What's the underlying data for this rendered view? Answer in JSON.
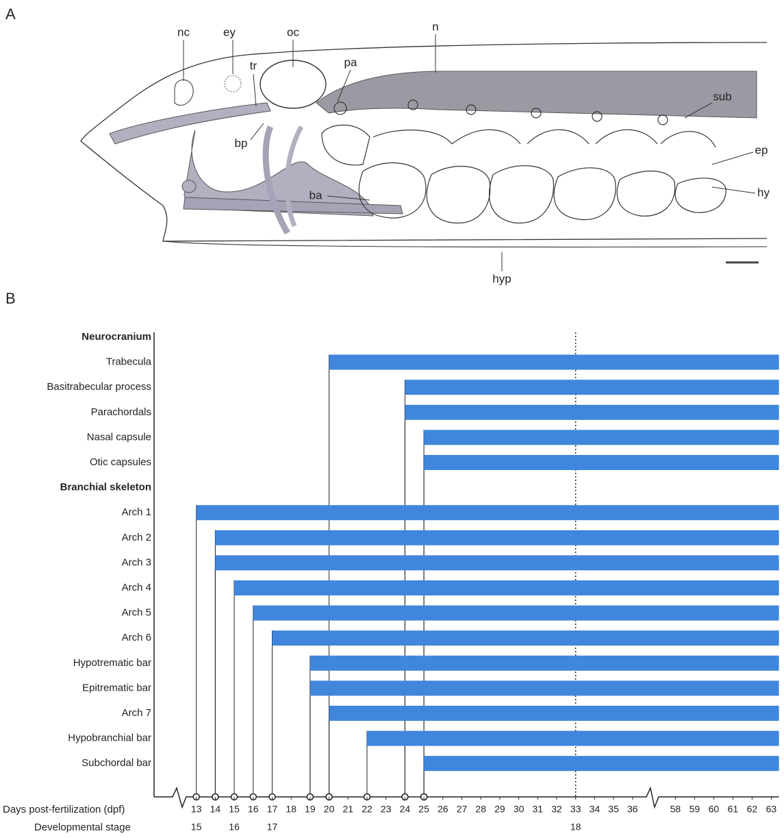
{
  "panel_a": {
    "label": "A",
    "labels": [
      "nc",
      "ey",
      "oc",
      "n",
      "tr",
      "pa",
      "sub",
      "bp",
      "ep",
      "hy",
      "ba",
      "hyp"
    ]
  },
  "chart_data": {
    "type": "timeline",
    "panel_label": "B",
    "categories": [
      "Neurocranium",
      "Trabecula",
      "Basitrabecular process",
      "Parachordals",
      "Nasal capsule",
      "Otic capsules",
      "Branchial skeleton",
      "Arch 1",
      "Arch 2",
      "Arch 3",
      "Arch 4",
      "Arch 5",
      "Arch 6",
      "Hypotrematic bar",
      "Epitrematic bar",
      "Arch 7",
      "Hypobranchial bar",
      "Subchordal bar"
    ],
    "values": [
      null,
      20,
      24,
      24,
      25,
      25,
      null,
      13,
      14,
      14,
      15,
      16,
      17,
      19,
      19,
      20,
      22,
      25
    ],
    "color": "#3f86dc",
    "xlim": [
      12,
      63.4
    ],
    "x_break": [
      36.8,
      57.2
    ],
    "xticks": [
      13,
      14,
      15,
      16,
      17,
      18,
      19,
      20,
      21,
      22,
      23,
      24,
      25,
      26,
      27,
      28,
      29,
      30,
      31,
      32,
      33,
      34,
      35,
      36,
      58,
      59,
      60,
      61,
      62,
      63
    ],
    "x_label": "Days post-fertilization (dpf)",
    "stage_label": "Developmental stage",
    "stages": [
      {
        "value": 13,
        "label": "15"
      },
      {
        "value": 15,
        "label": "16"
      },
      {
        "value": 17,
        "label": "17"
      },
      {
        "value": 33,
        "label": "18"
      }
    ],
    "reference_line": 33
  }
}
